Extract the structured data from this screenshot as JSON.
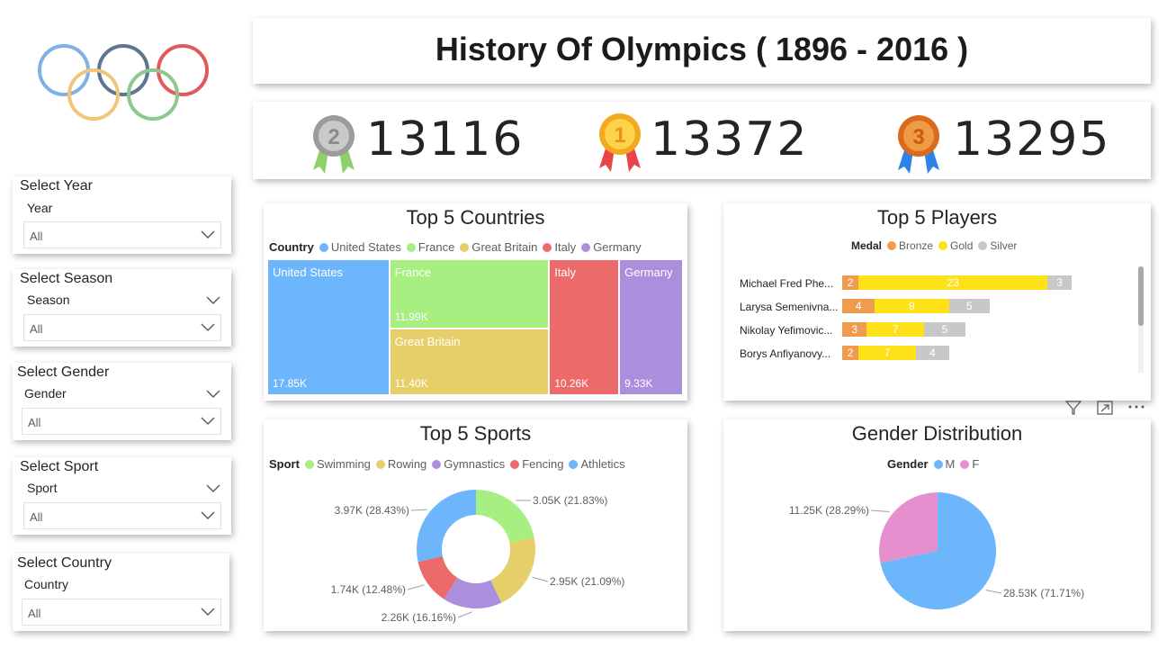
{
  "header": {
    "title": "History Of Olympics ( 1896 - 2016 )"
  },
  "kpis": [
    {
      "medal": "silver",
      "badge": "2",
      "value": "13116",
      "icon": "silver-medal-icon"
    },
    {
      "medal": "gold",
      "badge": "1",
      "value": "13372",
      "icon": "gold-medal-icon"
    },
    {
      "medal": "bronze",
      "badge": "3",
      "value": "13295",
      "icon": "bronze-medal-icon"
    }
  ],
  "slicers": [
    {
      "title": "Select Year",
      "field": "Year",
      "value": "All"
    },
    {
      "title": "Select Season",
      "field": "Season",
      "value": "All"
    },
    {
      "title": "Select Gender",
      "field": "Gender",
      "value": "All"
    },
    {
      "title": "Select Sport",
      "field": "Sport",
      "value": "All"
    },
    {
      "title": "Select Country",
      "field": "Country",
      "value": "All"
    }
  ],
  "colors": {
    "blue": "#6db6fb",
    "green": "#a6ef80",
    "yellow": "#e6cf68",
    "red": "#ec6a6a",
    "purple": "#ab8fdc",
    "bronze": "#f09c4f",
    "gold": "#ffe11a",
    "silver": "#c8c8c8",
    "pink": "#e68fcf"
  },
  "countries": {
    "title": "Top 5 Countries",
    "legend_title": "Country",
    "chart_data": {
      "type": "treemap",
      "items": [
        {
          "name": "United States",
          "value": 17.85,
          "label": "17.85K",
          "color": "#6db6fb"
        },
        {
          "name": "France",
          "value": 11.99,
          "label": "11.99K",
          "color": "#a6ef80"
        },
        {
          "name": "Great Britain",
          "value": 11.4,
          "label": "11.40K",
          "color": "#e6cf68"
        },
        {
          "name": "Italy",
          "value": 10.26,
          "label": "10.26K",
          "color": "#ec6a6a"
        },
        {
          "name": "Germany",
          "value": 9.33,
          "label": "9.33K",
          "color": "#ab8fdc"
        }
      ]
    }
  },
  "players": {
    "title": "Top 5 Players",
    "legend_title": "Medal",
    "legend": [
      {
        "name": "Bronze",
        "color": "#f09c4f"
      },
      {
        "name": "Gold",
        "color": "#ffe11a"
      },
      {
        "name": "Silver",
        "color": "#c8c8c8"
      }
    ],
    "chart_data": {
      "type": "stacked-bar",
      "max": 34,
      "rows": [
        {
          "name": "Michael Fred Phe...",
          "bronze": 2,
          "gold": 23,
          "silver": 3
        },
        {
          "name": "Larysa Semenivna...",
          "bronze": 4,
          "gold": 9,
          "silver": 5
        },
        {
          "name": "Nikolay Yefimovic...",
          "bronze": 3,
          "gold": 7,
          "silver": 5
        },
        {
          "name": "Borys Anfiyanovy...",
          "bronze": 2,
          "gold": 7,
          "silver": 4
        }
      ]
    }
  },
  "sports": {
    "title": "Top 5 Sports",
    "legend_title": "Sport",
    "chart_data": {
      "type": "donut",
      "slices": [
        {
          "name": "Swimming",
          "value": 3.05,
          "label": "3.05K (21.83%)",
          "color": "#a6ef80"
        },
        {
          "name": "Rowing",
          "value": 2.95,
          "label": "2.95K (21.09%)",
          "color": "#e6cf68"
        },
        {
          "name": "Gymnastics",
          "value": 2.26,
          "label": "2.26K (16.16%)",
          "color": "#ab8fdc"
        },
        {
          "name": "Fencing",
          "value": 1.74,
          "label": "1.74K (12.48%)",
          "color": "#ec6a6a"
        },
        {
          "name": "Athletics",
          "value": 3.97,
          "label": "3.97K (28.43%)",
          "color": "#6db6fb"
        }
      ]
    }
  },
  "gender": {
    "title": "Gender Distribution",
    "legend_title": "Gender",
    "chart_data": {
      "type": "pie",
      "slices": [
        {
          "name": "M",
          "value": 28.53,
          "label": "28.53K (71.71%)",
          "color": "#6db6fb"
        },
        {
          "name": "F",
          "value": 11.25,
          "label": "11.25K (28.29%)",
          "color": "#e68fcf"
        }
      ]
    }
  },
  "visual_header": {
    "icons": [
      "filter-icon",
      "focus-mode-icon",
      "more-options-icon"
    ]
  }
}
